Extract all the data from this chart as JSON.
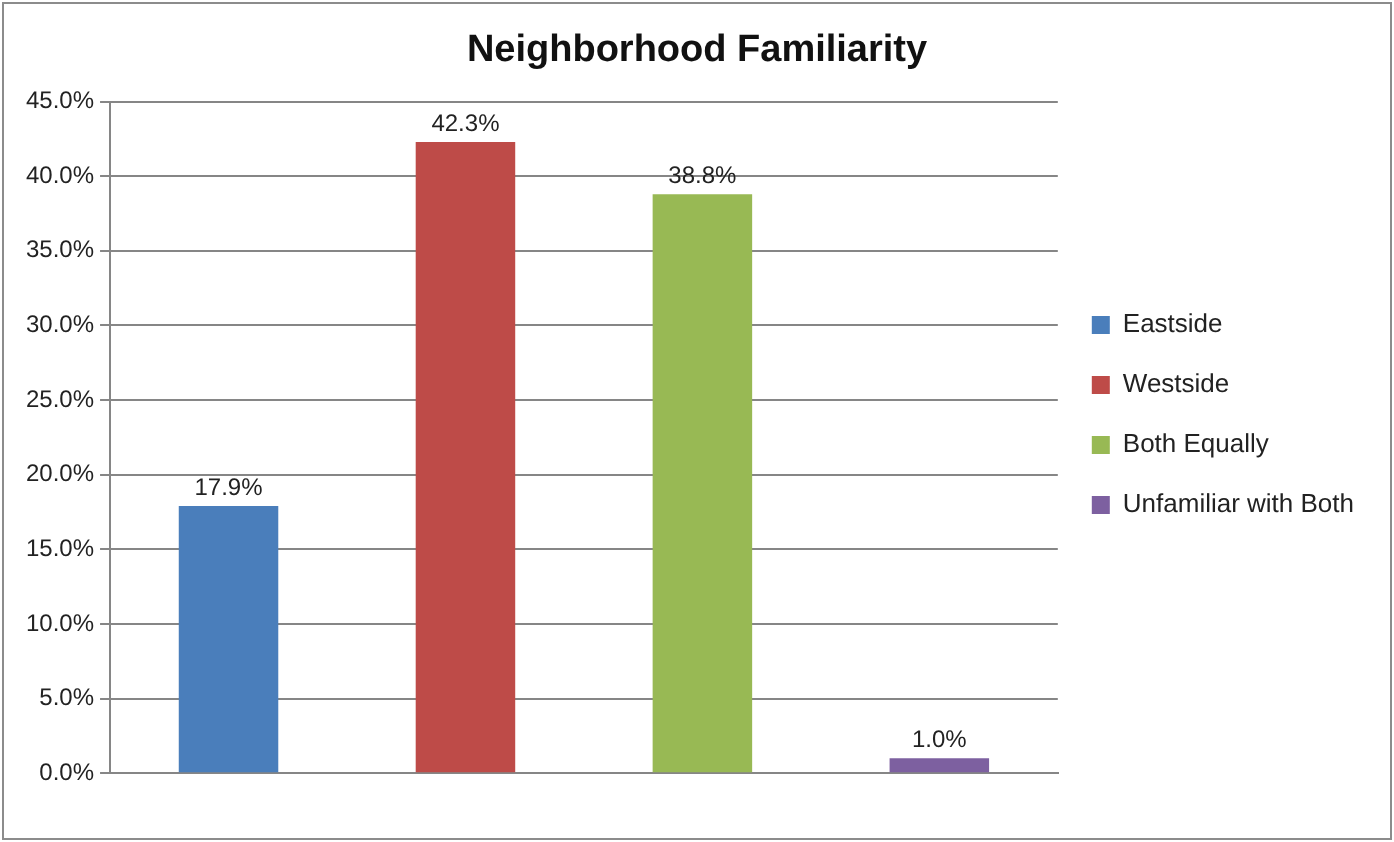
{
  "chart_data": {
    "type": "bar",
    "title": "Neighborhood Familiarity",
    "categories": [
      null,
      null,
      null,
      null
    ],
    "series": [
      {
        "name": "Eastside",
        "color": "#4a7ebb",
        "values": [
          17.9,
          null,
          null,
          null
        ],
        "value_labels": [
          "17.9%",
          null,
          null,
          null
        ]
      },
      {
        "name": "Westside",
        "color": "#be4b48",
        "values": [
          null,
          42.3,
          null,
          null
        ],
        "value_labels": [
          null,
          "42.3%",
          null,
          null
        ]
      },
      {
        "name": "Both Equally",
        "color": "#98b954",
        "values": [
          null,
          null,
          38.8,
          null
        ],
        "value_labels": [
          null,
          null,
          "38.8%",
          null
        ]
      },
      {
        "name": "Unfamiliar with Both",
        "color": "#7d60a0",
        "values": [
          null,
          null,
          null,
          1.0
        ],
        "value_labels": [
          null,
          null,
          null,
          "1.0%"
        ]
      }
    ],
    "ylim": [
      0,
      45
    ],
    "yticks": [
      {
        "value": 0,
        "label": "0.0%"
      },
      {
        "value": 5,
        "label": "5.0%"
      },
      {
        "value": 10,
        "label": "10.0%"
      },
      {
        "value": 15,
        "label": "15.0%"
      },
      {
        "value": 20,
        "label": "20.0%"
      },
      {
        "value": 25,
        "label": "25.0%"
      },
      {
        "value": 30,
        "label": "30.0%"
      },
      {
        "value": 35,
        "label": "35.0%"
      },
      {
        "value": 40,
        "label": "40.0%"
      },
      {
        "value": 45,
        "label": "45.0%"
      }
    ],
    "grid": "y",
    "legend": "right"
  }
}
